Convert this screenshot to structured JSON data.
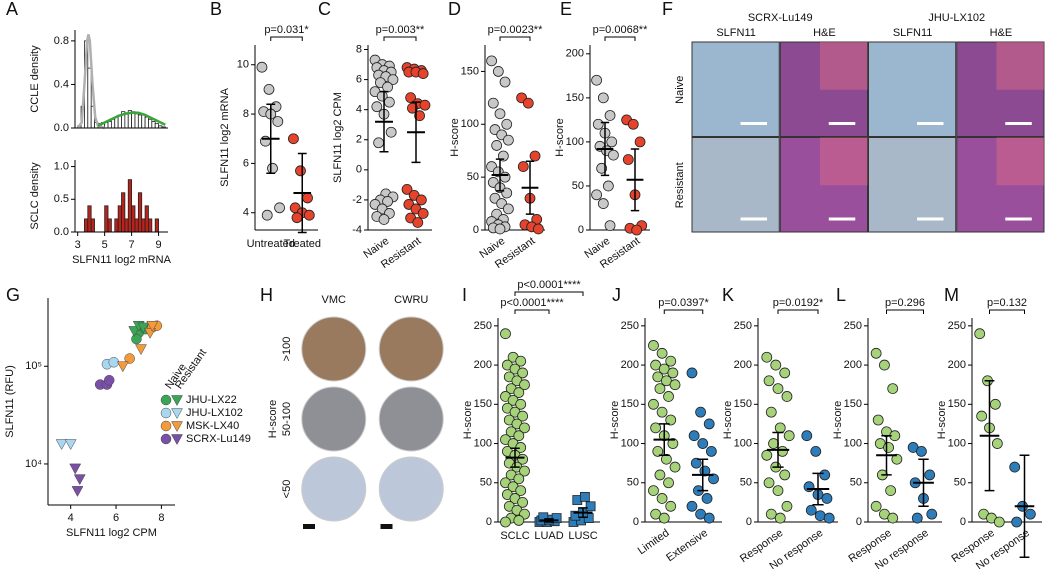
{
  "chart_data": [
    {
      "type": "histogram",
      "panel": "A",
      "ylabel": "CCLE density",
      "color": "#ffffff",
      "bins": [
        3,
        3.25,
        3.5,
        3.75,
        4,
        4.25,
        4.5,
        4.75,
        5,
        5.25,
        5.5,
        5.75,
        6,
        6.25,
        6.5,
        6.75,
        7,
        7.25,
        7.5,
        7.75,
        8,
        8.25,
        8.5,
        8.75,
        9,
        9.25,
        9.5
      ],
      "values": [
        0.02,
        0.2,
        0.8,
        0.55,
        0.2,
        0.05,
        0.04,
        0.05,
        0.05,
        0.06,
        0.08,
        0.1,
        0.12,
        0.15,
        0.14,
        0.16,
        0.15,
        0.13,
        0.12,
        0.12,
        0.1,
        0.08,
        0.06,
        0.04,
        0.02,
        0.01
      ],
      "lines": [
        {
          "color": "#b0b0b0",
          "x": [
            3,
            3.3,
            3.5,
            3.7,
            3.8,
            3.9,
            4.1,
            4.3,
            4.5,
            5
          ],
          "values": [
            0,
            0.05,
            0.4,
            0.8,
            0.86,
            0.8,
            0.4,
            0.1,
            0.02,
            0
          ]
        },
        {
          "color": "#3aa63a",
          "x": [
            4.5,
            5,
            5.5,
            6,
            6.5,
            7,
            7.5,
            8,
            8.5,
            9,
            9.5
          ],
          "values": [
            0.02,
            0.05,
            0.08,
            0.11,
            0.13,
            0.14,
            0.14,
            0.12,
            0.09,
            0.06,
            0.03
          ]
        }
      ],
      "xlim": [
        2.8,
        9.7
      ],
      "ylim": [
        0,
        0.9
      ],
      "yticks": [
        {
          "value": 0,
          "label": "0.0"
        },
        0.4,
        0.8
      ]
    },
    {
      "type": "histogram",
      "ylabel": "SCLC density",
      "xlabel": "SLFN11 log2 mRNA",
      "color": "#b8231c",
      "bins": [
        3,
        3.25,
        3.5,
        3.75,
        4,
        4.25,
        4.5,
        4.75,
        5,
        5.25,
        5.5,
        5.75,
        6,
        6.25,
        6.5,
        6.75,
        7,
        7.25,
        7.5,
        7.75,
        8,
        8.25,
        8.5,
        8.75,
        9,
        9.25,
        9.5
      ],
      "values": [
        0,
        0,
        0.2,
        0.4,
        0.2,
        0,
        0,
        0,
        0.4,
        0.2,
        0,
        0.2,
        0.4,
        0.6,
        0.2,
        0.8,
        0.4,
        0.2,
        0.6,
        0.2,
        0.4,
        0.2,
        0,
        0.2,
        0,
        0
      ],
      "xlim": [
        2.8,
        9.7
      ],
      "ylim": [
        0,
        1.1
      ],
      "xticks": [
        3,
        5,
        7,
        9
      ],
      "yticks": [
        {
          "value": 0,
          "label": "0.0"
        },
        0.5,
        {
          "value": 1,
          "label": "1.0"
        }
      ]
    },
    {
      "type": "dotplot",
      "panel": "B",
      "ylabel": "SLFN11 log2 mRNA",
      "pvalues": [
        "p=0.031*"
      ],
      "categories": [
        "Untreated",
        "Treated"
      ],
      "groups": [
        {
          "color": "#c8c8c8",
          "values": [
            9.9,
            9.0,
            8.3,
            8.1,
            8.0,
            7.7,
            6.9,
            5.8,
            4.2,
            3.9
          ],
          "mean": 7.0,
          "error": 1.4
        },
        {
          "color": "#e5432c",
          "values": [
            7.0,
            5.7,
            4.6,
            4.2,
            4.0,
            3.9,
            3.8
          ],
          "mean": 4.8,
          "error": 1.6
        }
      ],
      "ylim": [
        3.3,
        10.8
      ],
      "yticks": [
        4,
        6,
        8,
        10
      ]
    },
    {
      "type": "dotplot",
      "panel": "C",
      "ylabel": "SLFN11 log2 CPM",
      "pvalues": [
        "p=0.003**"
      ],
      "categories": [
        "Naive",
        "Resistant"
      ],
      "groups": [
        {
          "color": "#c8c8c8",
          "values": [
            7.3,
            7,
            6.9,
            6.8,
            6.6,
            6.5,
            6.3,
            6.2,
            6.0,
            5.8,
            5.5,
            5.2,
            4.9,
            4.5,
            4.2,
            3.7,
            2.5,
            1.8,
            -1.6,
            -1.8,
            -2,
            -2.1,
            -2.3,
            -2.6,
            -2.9,
            -3.1,
            -3.3
          ],
          "mean": 3.2,
          "error": 2.0
        },
        {
          "color": "#e5432c",
          "values": [
            6.8,
            6.7,
            6.6,
            6.5,
            6.5,
            6.4,
            4.8,
            4.4,
            4.3,
            4.1,
            3.6,
            -1.3,
            -1.7,
            -2,
            -2.3,
            -2.6,
            -2.9,
            -3.2,
            -3.5
          ],
          "mean": 2.5,
          "error": 2.0
        }
      ],
      "ylim": [
        -4,
        8.3
      ],
      "yticks": [
        -4,
        -2,
        0,
        2,
        4,
        6,
        8
      ]
    },
    {
      "type": "dotplot",
      "panel": "D",
      "ylabel": "H-score",
      "pvalues": [
        "p=0.0023**"
      ],
      "categories": [
        "Naive",
        "Resistant"
      ],
      "groups": [
        {
          "color": "#c8c8c8",
          "values": [
            160,
            150,
            140,
            120,
            110,
            100,
            95,
            90,
            85,
            80,
            70,
            60,
            55,
            50,
            45,
            40,
            35,
            30,
            25,
            20,
            15,
            10,
            8,
            5,
            3,
            2,
            1
          ],
          "mean": 52,
          "error": 15
        },
        {
          "color": "#e5432c",
          "values": [
            125,
            120,
            70,
            60,
            30,
            10,
            5,
            3,
            1
          ],
          "mean": 40,
          "error": 25
        }
      ],
      "ylim": [
        0,
        175
      ],
      "yticks": [
        0,
        50,
        100,
        150
      ]
    },
    {
      "type": "dotplot",
      "panel": "E",
      "ylabel": "H-score",
      "pvalues": [
        "p=0.0068**"
      ],
      "categories": [
        "Naive",
        "Resistant"
      ],
      "groups": [
        {
          "color": "#c8c8c8",
          "values": [
            170,
            150,
            130,
            120,
            110,
            100,
            95,
            90,
            85,
            70,
            50,
            40,
            30,
            5
          ],
          "mean": 92,
          "error": 30
        },
        {
          "color": "#e5432c",
          "values": [
            125,
            120,
            100,
            80,
            40,
            5,
            2,
            0
          ],
          "mean": 57,
          "error": 35
        }
      ],
      "ylim": [
        0,
        210
      ],
      "yticks": [
        0,
        50,
        100,
        150,
        200
      ]
    },
    {
      "type": "image",
      "panel": "F",
      "groups": [
        "SCRX-Lu149",
        "JHU-LX102"
      ],
      "columns": [
        "SLFN11",
        "H&E",
        "SLFN11",
        "H&E"
      ],
      "rows": [
        "Naive",
        "Resistant"
      ]
    },
    {
      "type": "scatter",
      "panel": "G",
      "ylabel": "SLFN11 (RFU)",
      "xlabel": "SLFN11 log2 CPM",
      "yscale": "log",
      "states": [
        "Naive",
        "Resistant"
      ],
      "models": [
        {
          "name": "JHU-LX22",
          "color": "#3aa655",
          "series": [
            {
              "x": [
                7.0,
                7.3,
                6.9
              ],
              "values": [
                220000,
                240000,
                190000
              ]
            },
            {
              "x": [
                6.8,
                7.0,
                7.2
              ],
              "values": [
                230000,
                260000,
                250000
              ]
            }
          ]
        },
        {
          "name": "JHU-LX102",
          "color": "#a9d6f0",
          "series": [
            {
              "x": [
                5.6,
                5.9
              ],
              "values": [
                105000,
                110000
              ]
            },
            {
              "x": [
                3.6,
                4.0
              ],
              "values": [
                16000,
                16000
              ]
            }
          ]
        },
        {
          "name": "MSK-LX40",
          "color": "#f39a3a",
          "series": [
            {
              "x": [
                7.6,
                7.8,
                6.6
              ],
              "values": [
                250000,
                260000,
                120000
              ]
            },
            {
              "x": [
                7.5,
                7.1,
                6.3,
                7.6
              ],
              "values": [
                220000,
                150000,
                100000,
                260000
              ]
            }
          ]
        },
        {
          "name": "SCRX-Lu149",
          "color": "#7a4fa8",
          "series": [
            {
              "x": [
                5.3,
                5.6,
                5.7
              ],
              "values": [
                65000,
                65000,
                72000
              ]
            },
            {
              "x": [
                4.2,
                4.4,
                4.3
              ],
              "values": [
                9000,
                7000,
                5300
              ]
            }
          ]
        }
      ],
      "xlim": [
        3,
        8.6
      ],
      "ylim": [
        3800,
        500000
      ],
      "xticks": [
        4,
        6,
        8
      ],
      "yticks": [
        {
          "value": 10000,
          "label": "10⁴"
        },
        {
          "value": 100000,
          "label": "10⁵"
        }
      ]
    },
    {
      "type": "image",
      "panel": "H",
      "columns": [
        "VMC",
        "CWRU"
      ],
      "rows": [
        ">100",
        "50-100",
        "<50"
      ],
      "row_title": "H-score"
    },
    {
      "type": "dotplot",
      "panel": "I",
      "ylabel": "H-score",
      "pvalues": [
        "p<0.0001****",
        "p<0.0001****"
      ],
      "categories": [
        "SCLC",
        "LUAD",
        "LUSC"
      ],
      "groups": [
        {
          "color": "#a6d379",
          "values": [
            240,
            210,
            205,
            200,
            195,
            190,
            185,
            180,
            175,
            170,
            165,
            160,
            155,
            150,
            145,
            140,
            135,
            130,
            125,
            120,
            115,
            110,
            105,
            100,
            95,
            90,
            85,
            80,
            75,
            70,
            65,
            60,
            55,
            50,
            45,
            40,
            35,
            30,
            25,
            20,
            15,
            10,
            5,
            2,
            0
          ],
          "mean": 82,
          "error": 12
        },
        {
          "color": "#2e7dbb",
          "marker": "square",
          "values": [
            0,
            0,
            1,
            2,
            3,
            5,
            6
          ],
          "mean": 2,
          "error": 2
        },
        {
          "color": "#2e7dbb",
          "marker": "square",
          "values": [
            0,
            2,
            5,
            8,
            12,
            20,
            28,
            32
          ],
          "mean": 12,
          "error": 6
        }
      ],
      "ylim": [
        0,
        260
      ],
      "yticks": [
        0,
        50,
        100,
        150,
        200,
        250
      ]
    },
    {
      "type": "dotplot",
      "panel": "J",
      "ylabel": "H-score",
      "pvalues": [
        "p=0.0397*"
      ],
      "categories": [
        "Limited",
        "Extensive"
      ],
      "groups": [
        {
          "color": "#a6d379",
          "values": [
            225,
            215,
            205,
            200,
            195,
            190,
            185,
            180,
            175,
            170,
            160,
            150,
            140,
            130,
            120,
            110,
            100,
            90,
            80,
            70,
            60,
            50,
            40,
            30,
            20,
            10,
            5
          ],
          "mean": 105,
          "error": 20
        },
        {
          "color": "#2e7dbb",
          "values": [
            190,
            140,
            125,
            110,
            100,
            90,
            75,
            65,
            55,
            40,
            30,
            20,
            10,
            5
          ],
          "mean": 60,
          "error": 20
        }
      ],
      "ylim": [
        0,
        260
      ],
      "yticks": [
        0,
        50,
        100,
        150,
        200,
        250
      ]
    },
    {
      "type": "dotplot",
      "panel": "K",
      "ylabel": "H-score",
      "pvalues": [
        "p=0.0192*"
      ],
      "categories": [
        "Response",
        "No response"
      ],
      "groups": [
        {
          "color": "#a6d379",
          "values": [
            210,
            200,
            190,
            180,
            170,
            160,
            140,
            120,
            110,
            100,
            90,
            85,
            70,
            60,
            50,
            40,
            20,
            10,
            5
          ],
          "mean": 92,
          "error": 22
        },
        {
          "color": "#2e7dbb",
          "values": [
            110,
            90,
            60,
            45,
            35,
            30,
            15,
            8,
            5
          ],
          "mean": 42,
          "error": 20
        }
      ],
      "ylim": [
        0,
        260
      ],
      "yticks": [
        0,
        50,
        100,
        150,
        200,
        250
      ]
    },
    {
      "type": "dotplot",
      "panel": "L",
      "ylabel": "H-score",
      "pvalues": [
        "p=0.296"
      ],
      "categories": [
        "Response",
        "No response"
      ],
      "groups": [
        {
          "color": "#a6d379",
          "values": [
            215,
            200,
            170,
            130,
            115,
            110,
            100,
            95,
            80,
            60,
            40,
            20,
            10,
            5
          ],
          "mean": 85,
          "error": 25
        },
        {
          "color": "#2e7dbb",
          "values": [
            95,
            90,
            60,
            50,
            30,
            10,
            5
          ],
          "mean": 50,
          "error": 30
        }
      ],
      "ylim": [
        0,
        260
      ],
      "yticks": [
        0,
        50,
        100,
        150,
        200,
        250
      ]
    },
    {
      "type": "dotplot",
      "panel": "M",
      "ylabel": "H-score",
      "pvalues": [
        "p=0.132"
      ],
      "categories": [
        "Response",
        "No response"
      ],
      "groups": [
        {
          "color": "#a6d379",
          "values": [
            240,
            180,
            150,
            135,
            120,
            100,
            10,
            5,
            0
          ],
          "mean": 110,
          "error": 70
        },
        {
          "color": "#2e7dbb",
          "values": [
            70,
            20,
            10,
            0
          ],
          "mean": 20,
          "error": 65
        }
      ],
      "ylim": [
        0,
        260
      ],
      "yticks": [
        0,
        50,
        100,
        150,
        200,
        250
      ]
    }
  ]
}
